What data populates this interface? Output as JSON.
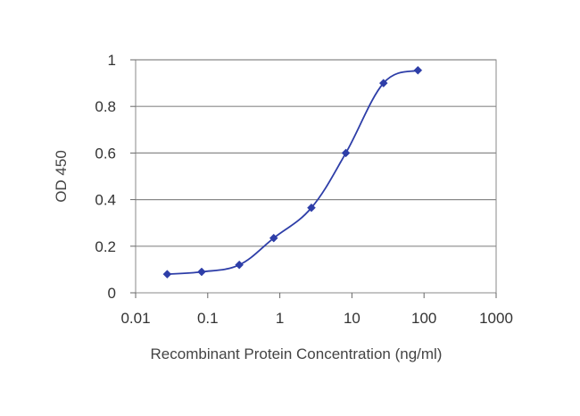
{
  "chart_data": {
    "type": "line",
    "title": "",
    "xlabel": "Recombinant Protein Concentration (ng/ml)",
    "ylabel": "OD 450",
    "x_scale": "log",
    "xlim": [
      0.01,
      1000
    ],
    "ylim": [
      0,
      1
    ],
    "x_ticks": [
      0.01,
      0.1,
      1,
      10,
      100,
      1000
    ],
    "x_tick_labels": [
      "0.01",
      "0.1",
      "1",
      "10",
      "100",
      "1000"
    ],
    "y_ticks": [
      0,
      0.2,
      0.4,
      0.6,
      0.8,
      1
    ],
    "y_tick_labels": [
      "0",
      "0.2",
      "0.4",
      "0.6",
      "0.8",
      "1"
    ],
    "grid": "horizontal",
    "legend": "none",
    "series": [
      {
        "color": "#2e3ea8",
        "marker": "diamond",
        "x": [
          0.0274,
          0.0823,
          0.274,
          0.823,
          2.74,
          8.23,
          27.4,
          82.3
        ],
        "y": [
          0.08,
          0.09,
          0.12,
          0.235,
          0.365,
          0.6,
          0.9,
          0.955
        ]
      }
    ]
  }
}
